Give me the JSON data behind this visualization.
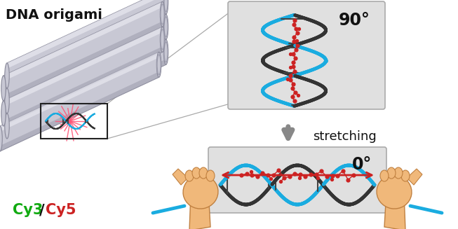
{
  "text_dna_origami": "DNA origami",
  "text_cy3": "Cy3",
  "text_cy5": "Cy5",
  "text_slash": "/",
  "text_90": "90°",
  "text_0": "0°",
  "text_stretching": "stretching",
  "bg_color": "#ffffff",
  "tube_fill": "#c8c8d4",
  "tube_edge": "#888899",
  "tube_highlight": "#e8e8f0",
  "tube_shadow": "#a0a0b0",
  "dna_dark": "#333333",
  "dna_blue": "#1aace0",
  "dna_red": "#cc2222",
  "arrow_red": "#cc2222",
  "arrow_gray": "#777777",
  "panel_fill": "#e0e0e0",
  "panel_edge": "#aaaaaa",
  "box_edge": "#222222",
  "starburst_color": "#ff5577",
  "hand_fill": "#f0b87a",
  "hand_edge": "#c08040",
  "hand_shadow": "#d09060",
  "text_color": "#111111",
  "cy3_color": "#11aa11",
  "cy5_color": "#cc2222",
  "mol_color": "#cc2222",
  "rung_color": "#444444",
  "connect_line": "#aaaaaa"
}
